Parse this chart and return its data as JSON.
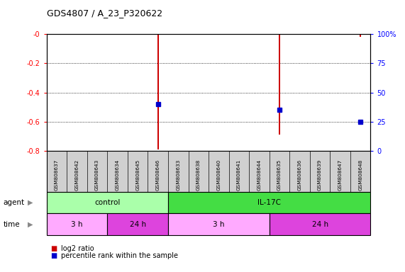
{
  "title": "GDS4807 / A_23_P320622",
  "samples": [
    "GSM808637",
    "GSM808642",
    "GSM808643",
    "GSM808634",
    "GSM808645",
    "GSM808646",
    "GSM808633",
    "GSM808638",
    "GSM808640",
    "GSM808641",
    "GSM808644",
    "GSM808635",
    "GSM808636",
    "GSM808639",
    "GSM808647",
    "GSM808648"
  ],
  "log2_ratio": [
    0,
    0,
    0,
    0,
    0,
    -0.79,
    0,
    0,
    0,
    0,
    0,
    -0.69,
    0,
    0,
    0,
    -0.02
  ],
  "percentile_rank": [
    null,
    null,
    null,
    null,
    null,
    40,
    null,
    null,
    null,
    null,
    null,
    35,
    null,
    null,
    null,
    25
  ],
  "ylim_left": [
    -0.8,
    0
  ],
  "ylim_right": [
    0,
    100
  ],
  "yticks_left": [
    -0.8,
    -0.6,
    -0.4,
    -0.2,
    0
  ],
  "yticks_right": [
    0,
    25,
    50,
    75,
    100
  ],
  "grid_y_left": [
    -0.8,
    -0.6,
    -0.4,
    -0.2,
    0
  ],
  "agent_groups": [
    {
      "label": "control",
      "start": 0,
      "end": 6,
      "color": "#aaffaa"
    },
    {
      "label": "IL-17C",
      "start": 6,
      "end": 16,
      "color": "#44dd44"
    }
  ],
  "time_groups": [
    {
      "label": "3 h",
      "start": 0,
      "end": 3,
      "color": "#ffaaff"
    },
    {
      "label": "24 h",
      "start": 3,
      "end": 6,
      "color": "#dd44dd"
    },
    {
      "label": "3 h",
      "start": 6,
      "end": 11,
      "color": "#ffaaff"
    },
    {
      "label": "24 h",
      "start": 11,
      "end": 16,
      "color": "#dd44dd"
    }
  ],
  "bar_color": "#cc0000",
  "dot_color": "#0000cc",
  "bg_color": "#ffffff",
  "plot_bg_color": "#ffffff",
  "border_color": "#000000",
  "bar_width": 0.08,
  "dot_size": 4,
  "legend_items": [
    {
      "label": "log2 ratio",
      "color": "#cc0000"
    },
    {
      "label": "percentile rank within the sample",
      "color": "#0000cc"
    }
  ]
}
